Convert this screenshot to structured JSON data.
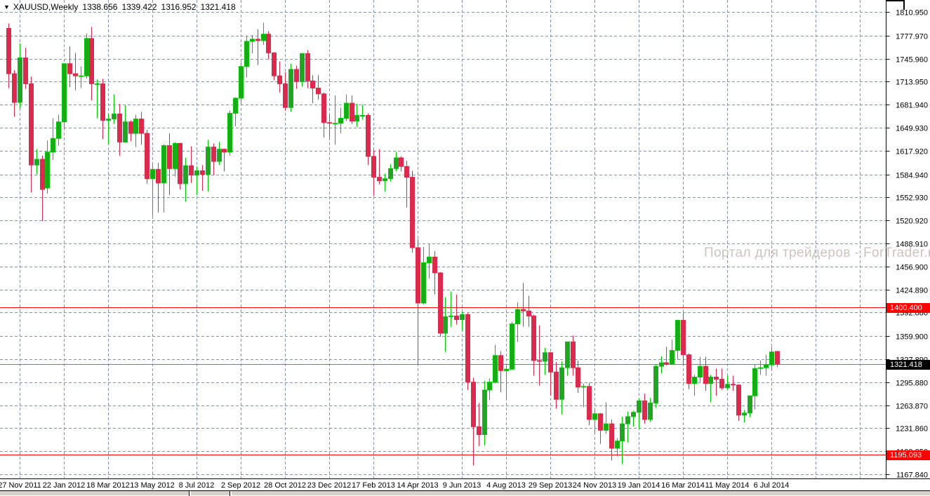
{
  "header": {
    "symbol_period": "XAUUSD,Weekly",
    "open": "1338.656",
    "high": "1339.422",
    "low": "1316.952",
    "close": "1321.418",
    "collapse_icon": "triangle-down"
  },
  "watermark": {
    "text": "Портал для трейдеров - ForTrader.ru"
  },
  "colors": {
    "background": "#ffffff",
    "bull_fill": "#1fa51f",
    "bull_stroke": "#00c800",
    "bear": "#dc2a4e",
    "grid": "#8494a8",
    "axis": "#000000",
    "hline_red": "#ff0000",
    "last_price_line": "#708090",
    "tag_text": "#ffffff",
    "watermark": "#c9c5bf",
    "label_text": "#000000"
  },
  "chart_data": {
    "type": "candlestick",
    "symbol": "XAUUSD",
    "timeframe": "Weekly",
    "grid": "dashed",
    "ylim": [
      1160.5,
      1827.5
    ],
    "y_axis_labels": [
      "1810.950",
      "1777.970",
      "1745.960",
      "1713.950",
      "1681.940",
      "1649.930",
      "1617.920",
      "1584.940",
      "1552.930",
      "1520.920",
      "1488.910",
      "1456.900",
      "1424.890",
      "1392.880",
      "1359.900",
      "1327.890",
      "1295.880",
      "1263.870",
      "1231.860",
      "1199.850",
      "1167.840"
    ],
    "x_axis_labels": [
      "27 Nov 2011",
      "22 Jan 2012",
      "18 Mar 2012",
      "13 May 2012",
      "8 Jul 2012",
      "2 Sep 2012",
      "28 Oct 2012",
      "23 Dec 2012",
      "17 Feb 2013",
      "14 Apr 2013",
      "9 Jun 2013",
      "4 Aug 2013",
      "29 Sep 2013",
      "24 Nov 2013",
      "19 Jan 2014",
      "16 Mar 2014",
      "11 May 2014",
      "6 Jul 2014"
    ],
    "first_tick_candle_index": 2,
    "candles_per_tick": 8,
    "hlines": [
      {
        "price": 1400.4,
        "label": "1400.400",
        "style": "red"
      },
      {
        "price": 1195.093,
        "label": "1195.093",
        "style": "red"
      },
      {
        "price": 1321.418,
        "label": "1321.418",
        "style": "last"
      }
    ],
    "candles": [
      [
        1788,
        1795,
        1705,
        1725
      ],
      [
        1725,
        1730,
        1665,
        1685
      ],
      [
        1685,
        1767,
        1677,
        1747
      ],
      [
        1747,
        1761,
        1704,
        1711
      ],
      [
        1711,
        1721,
        1560,
        1598
      ],
      [
        1598,
        1620,
        1585,
        1606
      ],
      [
        1606,
        1611,
        1520,
        1564
      ],
      [
        1566,
        1632,
        1558,
        1616
      ],
      [
        1616,
        1663,
        1605,
        1635
      ],
      [
        1635,
        1668,
        1625,
        1658
      ],
      [
        1658,
        1739,
        1648,
        1739
      ],
      [
        1739,
        1763,
        1706,
        1725
      ],
      [
        1725,
        1754,
        1702,
        1722
      ],
      [
        1722,
        1735,
        1705,
        1722
      ],
      [
        1722,
        1781,
        1718,
        1774
      ],
      [
        1774,
        1790,
        1688,
        1711
      ],
      [
        1711,
        1717,
        1663,
        1711
      ],
      [
        1711,
        1718,
        1634,
        1660
      ],
      [
        1660,
        1669,
        1627,
        1662
      ],
      [
        1662,
        1696,
        1655,
        1669
      ],
      [
        1669,
        1683,
        1611,
        1630
      ],
      [
        1630,
        1681,
        1629,
        1658
      ],
      [
        1658,
        1660,
        1631,
        1642
      ],
      [
        1642,
        1668,
        1623,
        1662
      ],
      [
        1662,
        1672,
        1626,
        1642
      ],
      [
        1642,
        1647,
        1572,
        1579
      ],
      [
        1579,
        1599,
        1527,
        1592
      ],
      [
        1592,
        1601,
        1532,
        1573
      ],
      [
        1573,
        1627,
        1532,
        1625
      ],
      [
        1625,
        1642,
        1556,
        1593
      ],
      [
        1593,
        1630,
        1582,
        1628
      ],
      [
        1628,
        1629,
        1564,
        1572
      ],
      [
        1572,
        1608,
        1547,
        1597
      ],
      [
        1597,
        1624,
        1573,
        1584
      ],
      [
        1584,
        1596,
        1556,
        1590
      ],
      [
        1590,
        1598,
        1562,
        1585
      ],
      [
        1585,
        1633,
        1561,
        1623
      ],
      [
        1623,
        1628,
        1584,
        1603
      ],
      [
        1603,
        1630,
        1598,
        1620
      ],
      [
        1620,
        1621,
        1589,
        1616
      ],
      [
        1616,
        1674,
        1611,
        1670
      ],
      [
        1670,
        1692,
        1652,
        1691
      ],
      [
        1691,
        1741,
        1683,
        1735
      ],
      [
        1735,
        1778,
        1720,
        1770
      ],
      [
        1770,
        1779,
        1753,
        1773
      ],
      [
        1773,
        1787,
        1737,
        1771
      ],
      [
        1771,
        1796,
        1765,
        1780
      ],
      [
        1780,
        1784,
        1745,
        1754
      ],
      [
        1754,
        1755,
        1716,
        1722
      ],
      [
        1722,
        1742,
        1699,
        1711
      ],
      [
        1711,
        1727,
        1674,
        1678
      ],
      [
        1678,
        1739,
        1672,
        1731
      ],
      [
        1731,
        1736,
        1704,
        1714
      ],
      [
        1714,
        1754,
        1707,
        1753
      ],
      [
        1753,
        1758,
        1705,
        1715
      ],
      [
        1715,
        1723,
        1684,
        1705
      ],
      [
        1705,
        1723,
        1689,
        1697
      ],
      [
        1697,
        1699,
        1636,
        1657
      ],
      [
        1657,
        1669,
        1636,
        1656
      ],
      [
        1656,
        1695,
        1626,
        1656
      ],
      [
        1656,
        1678,
        1642,
        1663
      ],
      [
        1663,
        1696,
        1659,
        1684
      ],
      [
        1684,
        1695,
        1655,
        1659
      ],
      [
        1659,
        1683,
        1651,
        1667
      ],
      [
        1667,
        1682,
        1661,
        1667
      ],
      [
        1667,
        1670,
        1598,
        1610
      ],
      [
        1610,
        1619,
        1555,
        1581
      ],
      [
        1581,
        1620,
        1571,
        1576
      ],
      [
        1576,
        1586,
        1561,
        1579
      ],
      [
        1579,
        1599,
        1575,
        1593
      ],
      [
        1593,
        1616,
        1589,
        1608
      ],
      [
        1608,
        1610,
        1589,
        1596
      ],
      [
        1596,
        1604,
        1539,
        1581
      ],
      [
        1581,
        1590,
        1476,
        1483
      ],
      [
        1483,
        1495,
        1321,
        1406
      ],
      [
        1406,
        1484,
        1404,
        1462
      ],
      [
        1462,
        1488,
        1440,
        1470
      ],
      [
        1470,
        1478,
        1418,
        1448
      ],
      [
        1448,
        1449,
        1359,
        1364
      ],
      [
        1364,
        1414,
        1338,
        1387
      ],
      [
        1387,
        1422,
        1373,
        1388
      ],
      [
        1388,
        1418,
        1376,
        1383
      ],
      [
        1383,
        1394,
        1367,
        1390
      ],
      [
        1390,
        1392,
        1285,
        1296
      ],
      [
        1296,
        1302,
        1180,
        1234
      ],
      [
        1234,
        1267,
        1207,
        1223
      ],
      [
        1223,
        1298,
        1208,
        1285
      ],
      [
        1285,
        1301,
        1271,
        1296
      ],
      [
        1296,
        1348,
        1294,
        1333
      ],
      [
        1333,
        1339,
        1282,
        1312
      ],
      [
        1312,
        1319,
        1272,
        1314
      ],
      [
        1314,
        1380,
        1313,
        1377
      ],
      [
        1377,
        1407,
        1352,
        1397
      ],
      [
        1397,
        1434,
        1373,
        1395
      ],
      [
        1395,
        1416,
        1373,
        1388
      ],
      [
        1388,
        1390,
        1305,
        1326
      ],
      [
        1326,
        1375,
        1291,
        1325
      ],
      [
        1325,
        1344,
        1306,
        1337
      ],
      [
        1337,
        1338,
        1277,
        1310
      ],
      [
        1310,
        1324,
        1259,
        1272
      ],
      [
        1272,
        1325,
        1251,
        1316
      ],
      [
        1316,
        1352,
        1305,
        1352
      ],
      [
        1352,
        1361,
        1305,
        1316
      ],
      [
        1316,
        1326,
        1281,
        1289
      ],
      [
        1289,
        1294,
        1261,
        1290
      ],
      [
        1290,
        1295,
        1236,
        1244
      ],
      [
        1244,
        1257,
        1225,
        1252
      ],
      [
        1252,
        1253,
        1210,
        1229
      ],
      [
        1229,
        1268,
        1224,
        1238
      ],
      [
        1238,
        1244,
        1187,
        1204
      ],
      [
        1204,
        1218,
        1193,
        1214
      ],
      [
        1214,
        1248,
        1182,
        1238
      ],
      [
        1238,
        1255,
        1212,
        1248
      ],
      [
        1248,
        1256,
        1234,
        1254
      ],
      [
        1254,
        1273,
        1231,
        1270
      ],
      [
        1270,
        1280,
        1238,
        1244
      ],
      [
        1244,
        1274,
        1241,
        1267
      ],
      [
        1267,
        1321,
        1260,
        1318
      ],
      [
        1318,
        1332,
        1308,
        1323
      ],
      [
        1323,
        1345,
        1319,
        1321
      ],
      [
        1321,
        1355,
        1320,
        1340
      ],
      [
        1340,
        1382,
        1327,
        1382
      ],
      [
        1382,
        1392,
        1320,
        1334
      ],
      [
        1334,
        1336,
        1286,
        1294
      ],
      [
        1294,
        1306,
        1277,
        1303
      ],
      [
        1303,
        1331,
        1296,
        1318
      ],
      [
        1318,
        1331,
        1284,
        1294
      ],
      [
        1294,
        1306,
        1268,
        1303
      ],
      [
        1303,
        1315,
        1277,
        1300
      ],
      [
        1300,
        1315,
        1285,
        1288
      ],
      [
        1288,
        1305,
        1286,
        1293
      ],
      [
        1293,
        1305,
        1284,
        1292
      ],
      [
        1292,
        1293,
        1242,
        1250
      ],
      [
        1250,
        1257,
        1240,
        1253
      ],
      [
        1253,
        1277,
        1247,
        1277
      ],
      [
        1277,
        1321,
        1258,
        1315
      ],
      [
        1315,
        1326,
        1306,
        1316
      ],
      [
        1316,
        1334,
        1305,
        1320
      ],
      [
        1320,
        1345,
        1312,
        1338
      ],
      [
        1338.656,
        1339.422,
        1316.952,
        1321.418
      ]
    ]
  }
}
